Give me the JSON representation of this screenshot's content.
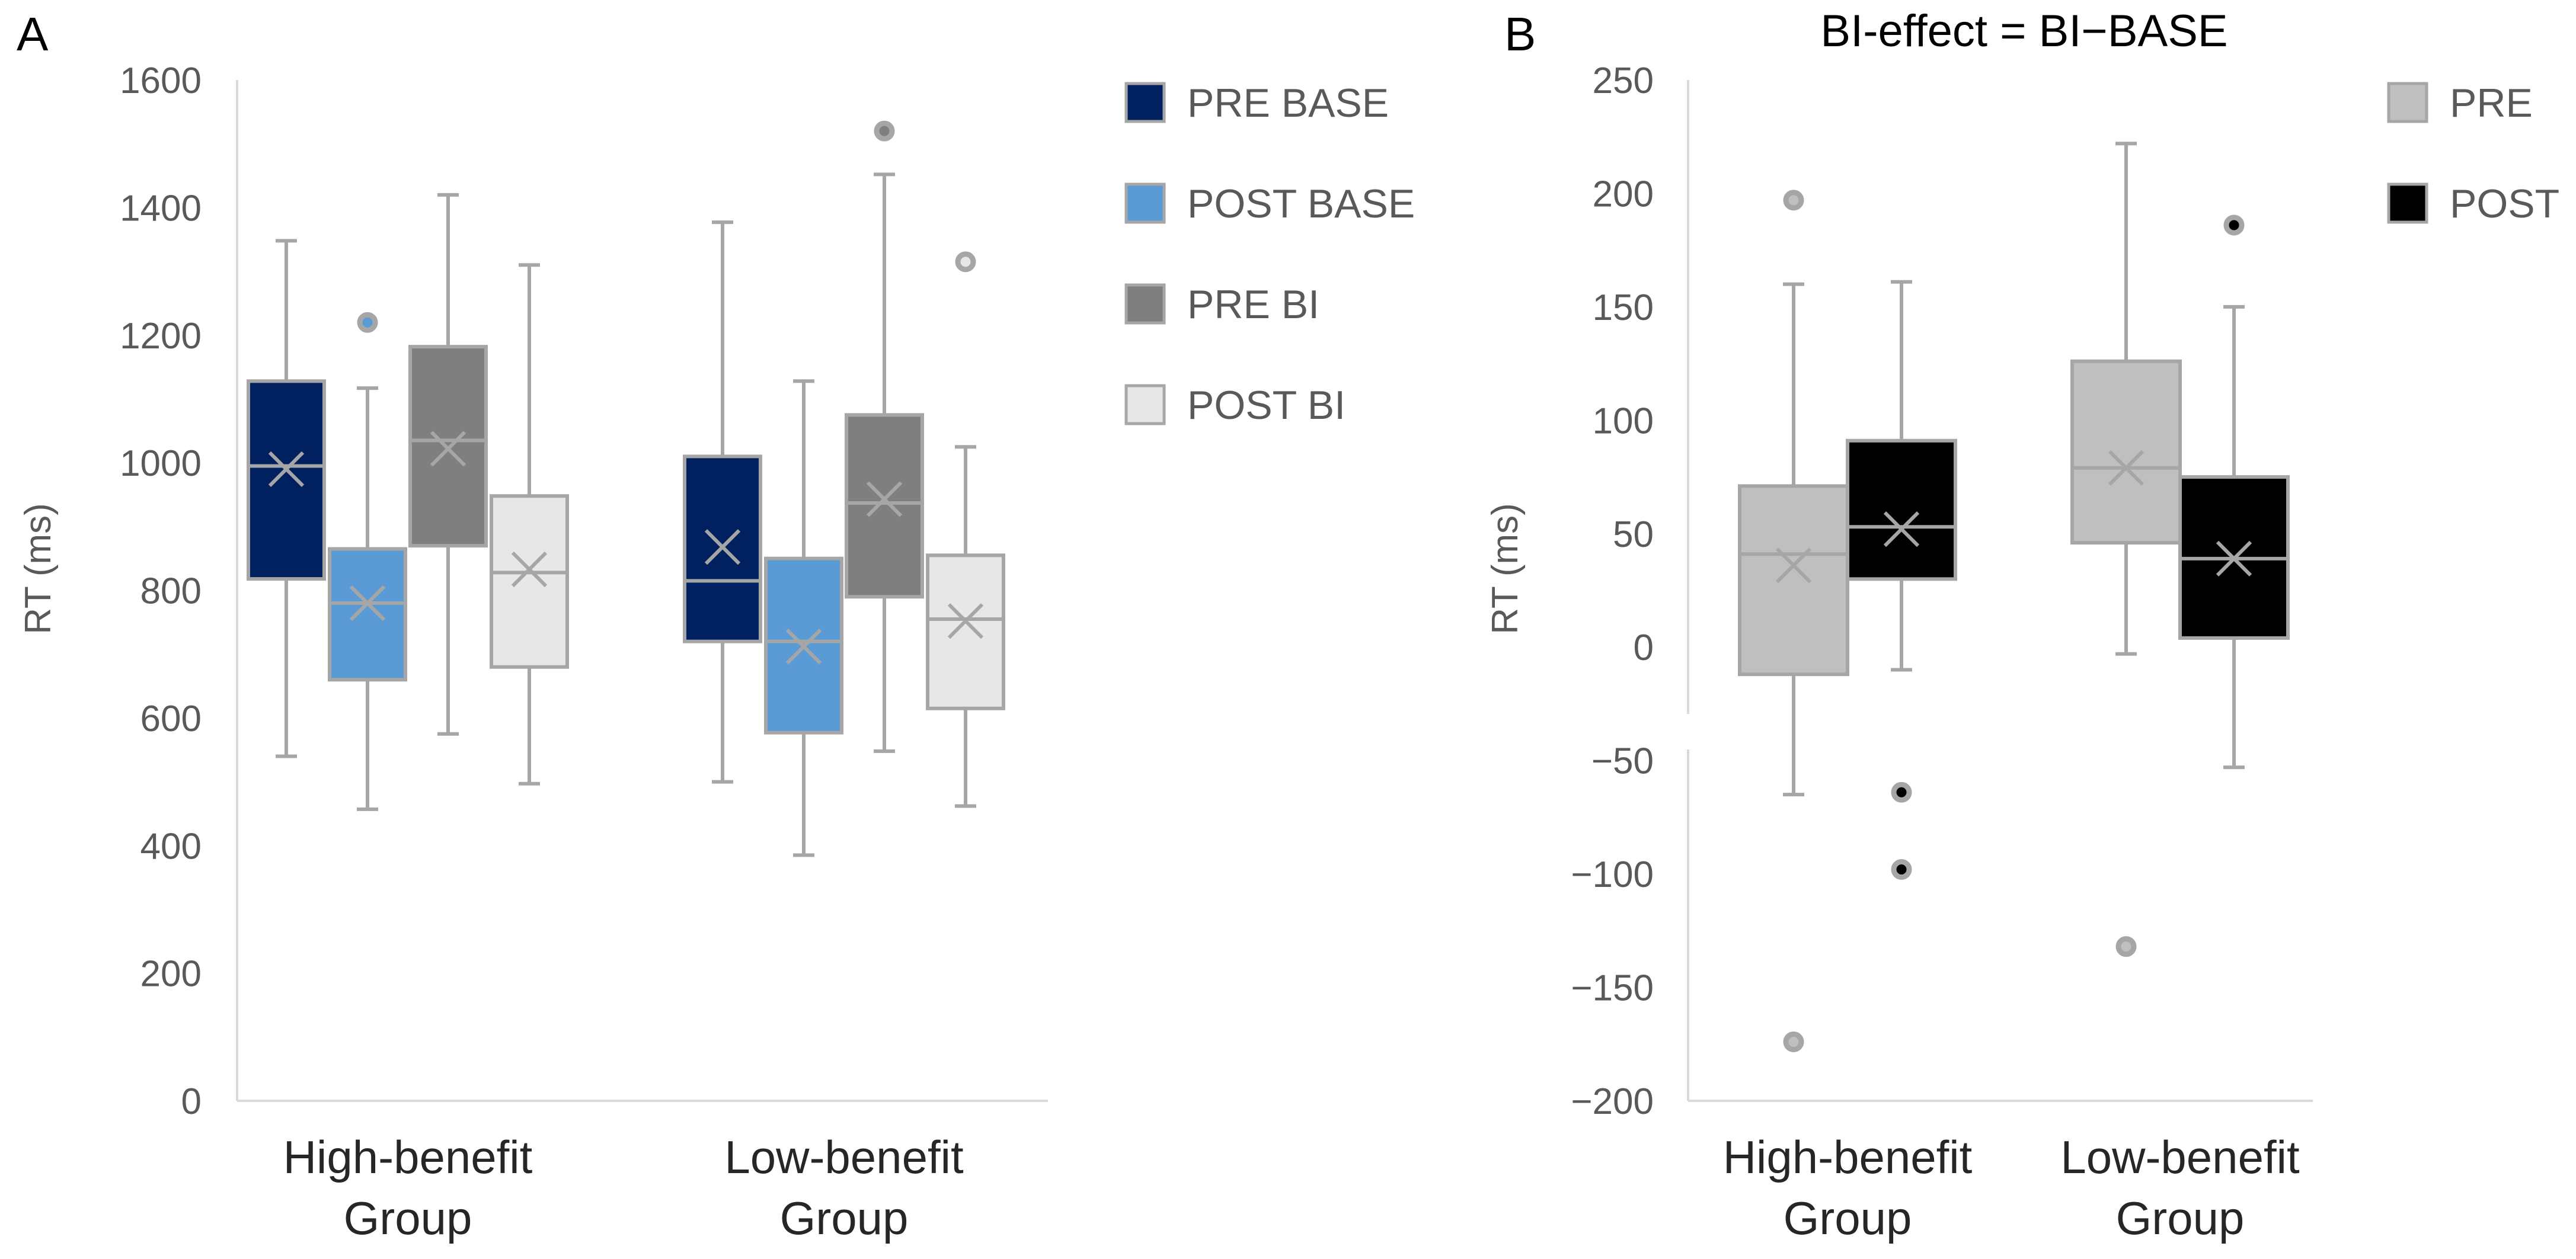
{
  "chart_data": [
    {
      "type": "boxplot",
      "panel_label": "A",
      "title": "",
      "xlabel": "",
      "ylabel": "RT (ms)",
      "ylim": [
        0,
        1600
      ],
      "yticks": [
        0,
        200,
        400,
        600,
        800,
        1000,
        1200,
        1400,
        1600
      ],
      "yticks_labels": [
        "0",
        "200",
        "400",
        "600",
        "800",
        "1000",
        "1200",
        "1400",
        "1600"
      ],
      "categories": [
        {
          "line1": "High-benefit",
          "line2": "Group"
        },
        {
          "line1": "Low-benefit",
          "line2": "Group"
        }
      ],
      "legend_position": "right",
      "series": [
        {
          "name": "PRE BASE",
          "color": "#002060",
          "stroke": "#a6a6a6",
          "median_color": "#a6a6a6",
          "outlier_fill": "#002060",
          "boxes": [
            {
              "whisker_low": 540,
              "q1": 818,
              "median": 995,
              "q3": 1128,
              "whisker_high": 1348,
              "mean": 990,
              "outliers": []
            },
            {
              "whisker_low": 500,
              "q1": 720,
              "median": 815,
              "q3": 1010,
              "whisker_high": 1377,
              "mean": 868,
              "outliers": []
            }
          ]
        },
        {
          "name": "POST BASE",
          "color": "#5b9bd5",
          "stroke": "#a6a6a6",
          "median_color": "#a6a6a6",
          "outlier_fill": "#5b9bd5",
          "boxes": [
            {
              "whisker_low": 457,
              "q1": 660,
              "median": 780,
              "q3": 865,
              "whisker_high": 1117,
              "mean": 780,
              "outliers": [
                1220
              ]
            },
            {
              "whisker_low": 385,
              "q1": 577,
              "median": 720,
              "q3": 850,
              "whisker_high": 1128,
              "mean": 712,
              "outliers": []
            }
          ]
        },
        {
          "name": "PRE BI",
          "color": "#7f7f7f",
          "stroke": "#a6a6a6",
          "median_color": "#a6a6a6",
          "outlier_fill": "#7f7f7f",
          "boxes": [
            {
              "whisker_low": 575,
              "q1": 870,
              "median": 1035,
              "q3": 1182,
              "whisker_high": 1420,
              "mean": 1022,
              "outliers": []
            },
            {
              "whisker_low": 548,
              "q1": 790,
              "median": 937,
              "q3": 1075,
              "whisker_high": 1452,
              "mean": 943,
              "outliers": [
                1520
              ]
            }
          ]
        },
        {
          "name": "POST BI",
          "color": "#e7e7e7",
          "stroke": "#a6a6a6",
          "median_color": "#a6a6a6",
          "outlier_fill": "#e7e7e7",
          "boxes": [
            {
              "whisker_low": 497,
              "q1": 680,
              "median": 828,
              "q3": 948,
              "whisker_high": 1310,
              "mean": 833,
              "outliers": []
            },
            {
              "whisker_low": 462,
              "q1": 615,
              "median": 755,
              "q3": 855,
              "whisker_high": 1025,
              "mean": 752,
              "outliers": [
                1315
              ]
            }
          ]
        }
      ]
    },
    {
      "type": "boxplot",
      "panel_label": "B",
      "title": "BI-effect = BI−BASE",
      "xlabel": "",
      "ylabel": "RT (ms)",
      "ylim": [
        -200,
        250
      ],
      "yticks": [
        -200,
        -150,
        -100,
        -50,
        0,
        50,
        100,
        150,
        200,
        250
      ],
      "yticks_labels": [
        "−200",
        "−150",
        "−100",
        "−50",
        "0",
        "50",
        "100",
        "150",
        "200",
        "250"
      ],
      "categories": [
        {
          "line1": "High-benefit",
          "line2": "Group"
        },
        {
          "line1": "Low-benefit",
          "line2": "Group"
        }
      ],
      "legend_position": "right",
      "series": [
        {
          "name": "PRE",
          "color": "#bfbfbf",
          "stroke": "#a6a6a6",
          "median_color": "#a6a6a6",
          "outlier_fill": "#bfbfbf",
          "boxes": [
            {
              "whisker_low": -65,
              "q1": -12,
              "median": 41,
              "q3": 71,
              "whisker_high": 160,
              "mean": 36,
              "outliers": [
                197,
                -174
              ]
            },
            {
              "whisker_low": -3,
              "q1": 46,
              "median": 79,
              "q3": 126,
              "whisker_high": 222,
              "mean": 79,
              "outliers": [
                -132
              ]
            }
          ]
        },
        {
          "name": "POST",
          "color": "#000000",
          "stroke": "#a6a6a6",
          "median_color": "#a6a6a6",
          "outlier_fill": "#000000",
          "boxes": [
            {
              "whisker_low": -10,
              "q1": 30,
              "median": 53,
              "q3": 91,
              "whisker_high": 161,
              "mean": 52,
              "outliers": [
                -64,
                -98
              ]
            },
            {
              "whisker_low": -53,
              "q1": 4,
              "median": 39,
              "q3": 75,
              "whisker_high": 150,
              "mean": 39,
              "outliers": [
                186
              ]
            }
          ]
        }
      ]
    }
  ]
}
